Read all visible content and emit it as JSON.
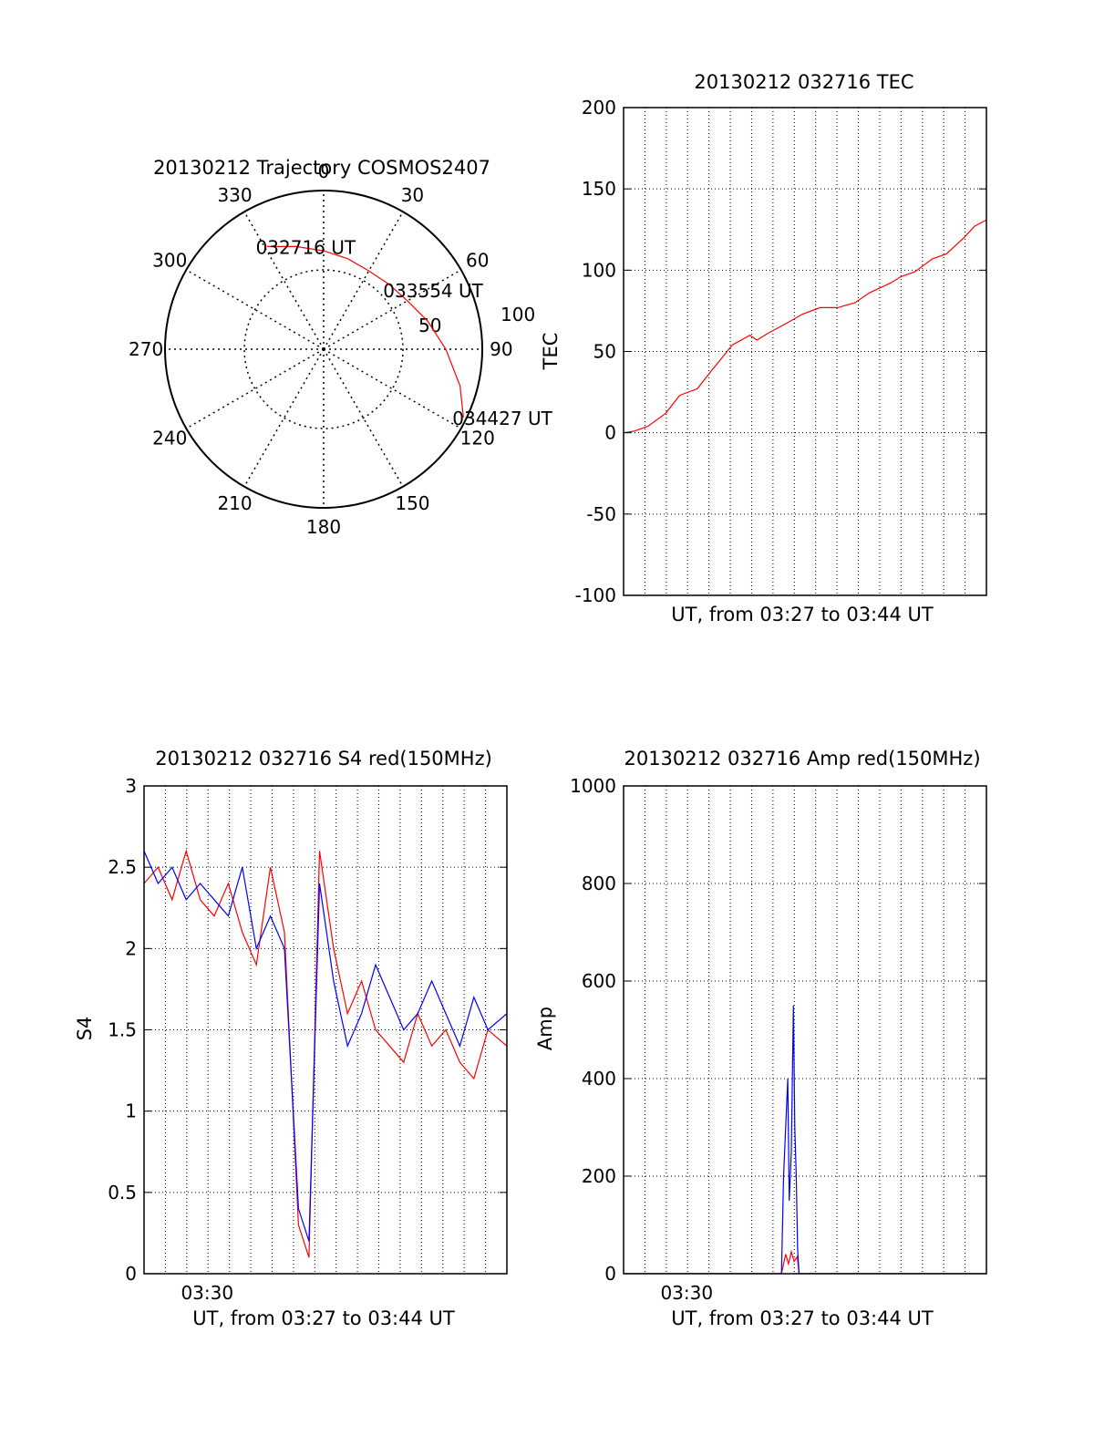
{
  "chart_data": [
    {
      "type": "polar",
      "title": "20130212 Trajectory COSMOS2407",
      "angle_labels": [
        "0",
        "30",
        "60",
        "90",
        "120",
        "150",
        "180",
        "210",
        "240",
        "270",
        "300",
        "330"
      ],
      "radial_labels": [
        "50",
        "100"
      ],
      "series": [
        {
          "color": "#ff0000",
          "points": [
            [
              331,
              74
            ],
            [
              345,
              67
            ],
            [
              0,
              62
            ],
            [
              15,
              59
            ],
            [
              30,
              57
            ],
            [
              45,
              58
            ],
            [
              60,
              61
            ],
            [
              75,
              68
            ],
            [
              90,
              77
            ],
            [
              105,
              89
            ],
            [
              116,
              98
            ]
          ]
        }
      ],
      "annotations": [
        {
          "text": "032716 UT",
          "az": 331,
          "zen": 74
        },
        {
          "text": "033554 UT",
          "az": 50,
          "zen": 58
        },
        {
          "text": "034427 UT",
          "az": 116,
          "zen": 98
        }
      ]
    },
    {
      "type": "line",
      "title": "20130212 032716 TEC",
      "xlabel": "UT, from 03:27 to 03:44 UT",
      "ylabel": "TEC",
      "xlim": [
        0,
        1034
      ],
      "ylim": [
        -100,
        200
      ],
      "yticks": [
        "-100",
        "-50",
        "0",
        "50",
        "100",
        "150",
        "200"
      ],
      "grid": true,
      "series": [
        {
          "color": "#ff0000",
          "x": [
            0,
            30,
            70,
            120,
            160,
            210,
            250,
            280,
            310,
            360,
            380,
            410,
            470,
            510,
            560,
            610,
            660,
            700,
            720,
            760,
            790,
            830,
            880,
            920,
            970,
            1000,
            1034
          ],
          "y": [
            0,
            1,
            4,
            12,
            23,
            27,
            38,
            46,
            54,
            60,
            57,
            61,
            68,
            73,
            77,
            77,
            80,
            86,
            88,
            92,
            96,
            99,
            107,
            110,
            120,
            127,
            131
          ]
        }
      ]
    },
    {
      "type": "line",
      "title": "20130212 032716 S4 red(150MHz)",
      "xlabel": "UT, from 03:27 to 03:44 UT",
      "ylabel": "S4",
      "xlim": [
        0,
        1034
      ],
      "ylim": [
        0,
        3
      ],
      "yticks": [
        "0",
        "0.5",
        "1",
        "1.5",
        "2",
        "2.5",
        "3"
      ],
      "xticks": [
        {
          "label": "03:30",
          "x": 180
        }
      ],
      "grid": true,
      "series": [
        {
          "color": "#ff0000",
          "x": [
            0,
            40,
            80,
            120,
            160,
            200,
            240,
            280,
            320,
            360,
            400,
            440,
            470,
            500,
            540,
            580,
            620,
            660,
            700,
            740,
            780,
            820,
            860,
            900,
            940,
            980,
            1034
          ],
          "y": [
            2.4,
            2.5,
            2.3,
            2.6,
            2.3,
            2.2,
            2.4,
            2.1,
            1.9,
            2.5,
            2.1,
            0.3,
            0.1,
            2.6,
            2.0,
            1.6,
            1.8,
            1.5,
            1.4,
            1.3,
            1.6,
            1.4,
            1.5,
            1.3,
            1.2,
            1.5,
            1.4
          ]
        },
        {
          "color": "#0000ff",
          "x": [
            0,
            40,
            80,
            120,
            160,
            200,
            240,
            280,
            320,
            360,
            400,
            440,
            470,
            500,
            540,
            580,
            620,
            660,
            700,
            740,
            780,
            820,
            860,
            900,
            940,
            980,
            1034
          ],
          "y": [
            2.6,
            2.4,
            2.5,
            2.3,
            2.4,
            2.3,
            2.2,
            2.5,
            2.0,
            2.2,
            2.0,
            0.4,
            0.2,
            2.4,
            1.8,
            1.4,
            1.6,
            1.9,
            1.7,
            1.5,
            1.6,
            1.8,
            1.6,
            1.4,
            1.7,
            1.5,
            1.6
          ]
        }
      ]
    },
    {
      "type": "line",
      "title": "20130212 032716 Amp red(150MHz)",
      "xlabel": "UT, from 03:27 to 03:44 UT",
      "ylabel": "Amp",
      "xlim": [
        0,
        1034
      ],
      "ylim": [
        0,
        1000
      ],
      "yticks": [
        "0",
        "200",
        "400",
        "600",
        "800",
        "1000"
      ],
      "xticks": [
        {
          "label": "03:30",
          "x": 180
        }
      ],
      "grid": true,
      "series": [
        {
          "color": "#ff0000",
          "x": [
            0,
            450,
            462,
            470,
            478,
            486,
            495,
            500,
            1034
          ],
          "y": [
            0,
            0,
            40,
            20,
            45,
            25,
            35,
            0,
            0
          ]
        },
        {
          "color": "#0000ff",
          "x": [
            0,
            450,
            456,
            462,
            468,
            472,
            478,
            484,
            488,
            492,
            496,
            500,
            1034
          ],
          "y": [
            0,
            0,
            200,
            300,
            400,
            150,
            250,
            550,
            300,
            200,
            50,
            0,
            0
          ]
        }
      ]
    }
  ]
}
